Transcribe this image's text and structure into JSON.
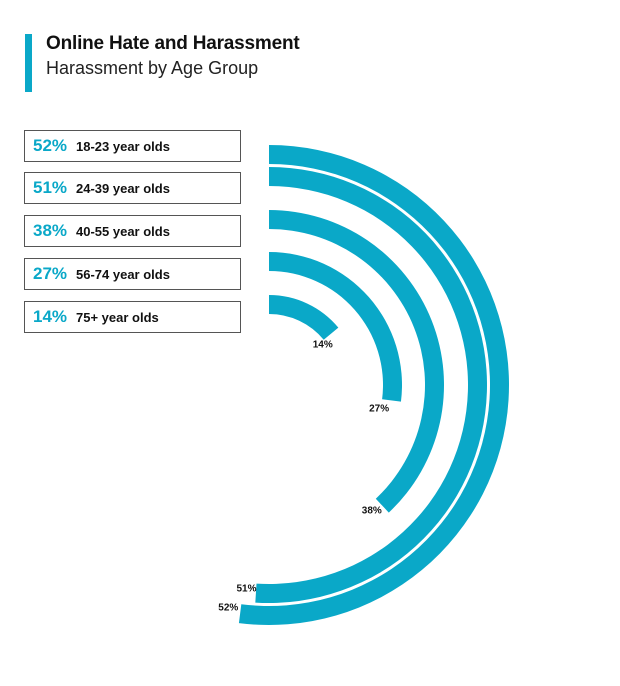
{
  "header": {
    "title": "Online Hate and Harassment",
    "subtitle": "Harassment by Age Group"
  },
  "colors": {
    "accent": "#0aa8c8",
    "text": "#111111",
    "border": "#555555"
  },
  "legend": [
    {
      "pct": "52%",
      "label": "18-23 year olds"
    },
    {
      "pct": "51%",
      "label": "24-39 year olds"
    },
    {
      "pct": "38%",
      "label": "40-55 year olds"
    },
    {
      "pct": "27%",
      "label": "56-74 year olds"
    },
    {
      "pct": "14%",
      "label": "75+ year olds"
    }
  ],
  "chart_data": {
    "type": "bar",
    "categories": [
      "18-23 year olds",
      "24-39 year olds",
      "40-55 year olds",
      "56-74 year olds",
      "75+ year olds"
    ],
    "values": [
      52,
      51,
      38,
      27,
      14
    ],
    "data_labels": [
      "52%",
      "51%",
      "38%",
      "27%",
      "14%"
    ],
    "unit": "%",
    "title": "Online Hate and Harassment",
    "subtitle": "Harassment by Age Group",
    "legend_position": "left"
  }
}
